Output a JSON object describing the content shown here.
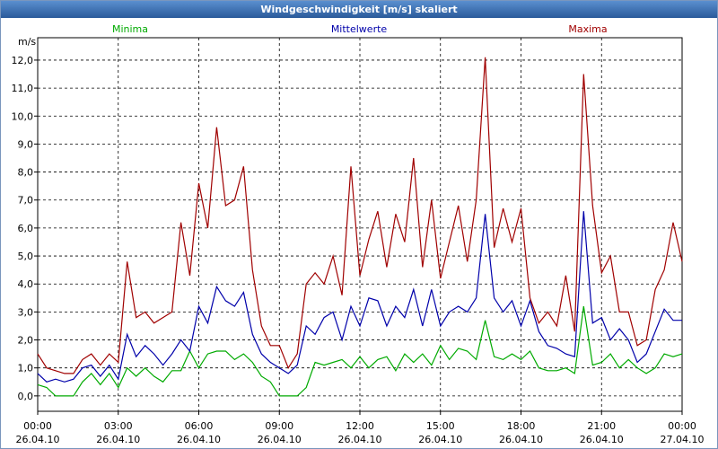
{
  "chart_data": {
    "type": "line",
    "title": "Windgeschwindigkeit [m/s] skaliert",
    "ylabel": "m/s",
    "xlim": [
      0,
      1440
    ],
    "ylim": [
      -0.55,
      12.8
    ],
    "grid": true,
    "xticks": [
      {
        "value": 0,
        "label": "00:00 26.04.10"
      },
      {
        "value": 180,
        "label": "03:00 26.04.10"
      },
      {
        "value": 360,
        "label": "06:00 26.04.10"
      },
      {
        "value": 540,
        "label": "09:00 26.04.10"
      },
      {
        "value": 720,
        "label": "12:00 26.04.10"
      },
      {
        "value": 900,
        "label": "15:00 26.04.10"
      },
      {
        "value": 1080,
        "label": "18:00 26.04.10"
      },
      {
        "value": 1260,
        "label": "21:00 26.04.10"
      },
      {
        "value": 1440,
        "label": "00:00 27.04.10"
      }
    ],
    "yticks": [
      {
        "value": 0,
        "label": "0,0"
      },
      {
        "value": 1,
        "label": "1,0"
      },
      {
        "value": 2,
        "label": "2,0"
      },
      {
        "value": 3,
        "label": "3,0"
      },
      {
        "value": 4,
        "label": "4,0"
      },
      {
        "value": 5,
        "label": "5,0"
      },
      {
        "value": 6,
        "label": "6,0"
      },
      {
        "value": 7,
        "label": "7,0"
      },
      {
        "value": 8,
        "label": "8,0"
      },
      {
        "value": 9,
        "label": "9,0"
      },
      {
        "value": 10,
        "label": "10,0"
      },
      {
        "value": 11,
        "label": "11,0"
      },
      {
        "value": 12,
        "label": "12,0"
      }
    ],
    "x": [
      0,
      20,
      40,
      60,
      80,
      100,
      120,
      140,
      160,
      180,
      200,
      220,
      240,
      260,
      280,
      300,
      320,
      340,
      360,
      380,
      400,
      420,
      440,
      460,
      480,
      500,
      520,
      540,
      560,
      580,
      600,
      620,
      640,
      660,
      680,
      700,
      720,
      740,
      760,
      780,
      800,
      820,
      840,
      860,
      880,
      900,
      920,
      940,
      960,
      980,
      1000,
      1020,
      1040,
      1060,
      1080,
      1100,
      1120,
      1140,
      1160,
      1180,
      1200,
      1220,
      1240,
      1260,
      1280,
      1300,
      1320,
      1340,
      1360,
      1380,
      1400,
      1420,
      1440
    ],
    "series": [
      {
        "name": "Minima",
        "color": "#00aa00",
        "values": [
          0.4,
          0.3,
          0.0,
          0.0,
          0.0,
          0.5,
          0.8,
          0.4,
          0.8,
          0.3,
          1.0,
          0.7,
          1.0,
          0.7,
          0.5,
          0.9,
          0.9,
          1.6,
          1.0,
          1.5,
          1.6,
          1.6,
          1.3,
          1.5,
          1.2,
          0.7,
          0.5,
          0.0,
          0.0,
          0.0,
          0.3,
          1.2,
          1.1,
          1.2,
          1.3,
          1.0,
          1.4,
          1.0,
          1.3,
          1.4,
          0.9,
          1.5,
          1.2,
          1.5,
          1.1,
          1.8,
          1.3,
          1.7,
          1.6,
          1.3,
          2.7,
          1.4,
          1.3,
          1.5,
          1.3,
          1.6,
          1.0,
          0.9,
          0.9,
          1.0,
          0.8,
          3.2,
          1.1,
          1.2,
          1.5,
          1.0,
          1.3,
          1.0,
          0.8,
          1.0,
          1.5,
          1.4,
          1.5
        ]
      },
      {
        "name": "Mittelwerte",
        "color": "#0000aa",
        "values": [
          0.8,
          0.5,
          0.6,
          0.5,
          0.6,
          1.0,
          1.1,
          0.7,
          1.1,
          0.6,
          2.2,
          1.4,
          1.8,
          1.5,
          1.1,
          1.5,
          2.0,
          1.6,
          3.2,
          2.6,
          3.9,
          3.4,
          3.2,
          3.7,
          2.2,
          1.5,
          1.2,
          1.0,
          0.8,
          1.1,
          2.5,
          2.2,
          2.8,
          3.0,
          2.0,
          3.2,
          2.5,
          3.5,
          3.4,
          2.5,
          3.2,
          2.8,
          3.8,
          2.5,
          3.8,
          2.5,
          3.0,
          3.2,
          3.0,
          3.5,
          6.5,
          3.5,
          3.0,
          3.4,
          2.5,
          3.4,
          2.3,
          1.8,
          1.7,
          1.5,
          1.4,
          6.6,
          2.6,
          2.8,
          2.0,
          2.4,
          2.0,
          1.2,
          1.5,
          2.3,
          3.1,
          2.7,
          2.7
        ]
      },
      {
        "name": "Maxima",
        "color": "#a00000",
        "values": [
          1.5,
          1.0,
          0.9,
          0.8,
          0.8,
          1.3,
          1.5,
          1.1,
          1.5,
          1.2,
          4.8,
          2.8,
          3.0,
          2.6,
          2.8,
          3.0,
          6.2,
          4.3,
          7.6,
          6.0,
          9.6,
          6.8,
          7.0,
          8.2,
          4.5,
          2.5,
          1.8,
          1.8,
          1.0,
          1.5,
          4.0,
          4.4,
          4.0,
          5.0,
          3.6,
          8.2,
          4.3,
          5.6,
          6.6,
          4.6,
          6.5,
          5.5,
          8.5,
          4.6,
          7.0,
          4.2,
          5.5,
          6.8,
          4.8,
          7.0,
          12.1,
          5.3,
          6.7,
          5.5,
          6.7,
          3.5,
          2.6,
          3.0,
          2.5,
          4.3,
          2.3,
          11.5,
          6.8,
          4.4,
          5.0,
          3.0,
          3.0,
          1.8,
          2.0,
          3.8,
          4.5,
          6.2,
          4.8
        ]
      }
    ]
  }
}
